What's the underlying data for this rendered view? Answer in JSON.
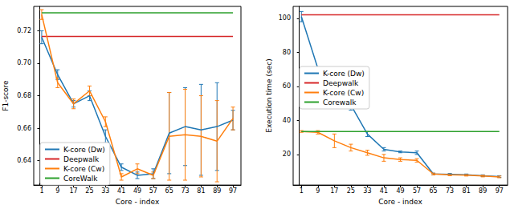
{
  "chart_data": [
    {
      "type": "line",
      "x_label": "Core - index",
      "y_label": "F1-score",
      "x": [
        1,
        9,
        17,
        25,
        33,
        41,
        49,
        57,
        65,
        73,
        81,
        89,
        97
      ],
      "xlim": [
        -3,
        101
      ],
      "xticks": [
        1,
        9,
        17,
        25,
        33,
        41,
        49,
        57,
        65,
        73,
        81,
        89,
        97
      ],
      "ylim": [
        0.625,
        0.735
      ],
      "yticks": [
        0.64,
        0.66,
        0.68,
        {
          "value": 0.7,
          "label": "0.70"
        },
        0.72
      ],
      "grid": false,
      "legend": "lower left",
      "series": [
        {
          "name": "K-core (Dw)",
          "color": "#1f77b4",
          "marker": "none",
          "line_style": "solid",
          "values": [
            0.716,
            0.693,
            0.675,
            0.68,
            0.655,
            0.636,
            0.631,
            0.632,
            0.657,
            0.661,
            0.659,
            0.661,
            0.665
          ],
          "errors": [
            0.004,
            0.003,
            0.002,
            0.003,
            0.004,
            0.002,
            0.002,
            0.003,
            0.025,
            0.024,
            0.028,
            0.027,
            0.006
          ]
        },
        {
          "name": "Deepwalk",
          "color": "#d62728",
          "marker": "none",
          "line_style": "solid",
          "values": [
            0.7165,
            0.7165,
            0.7165,
            0.7165,
            0.7165,
            0.7165,
            0.7165,
            0.7165,
            0.7165,
            0.7165,
            0.7165,
            0.7165,
            0.7165
          ]
        },
        {
          "name": "K-core (Cw)",
          "color": "#ff7f0e",
          "marker": "none",
          "line_style": "solid",
          "values": [
            0.73,
            0.688,
            0.675,
            0.683,
            0.664,
            0.63,
            0.635,
            0.631,
            0.655,
            0.656,
            0.655,
            0.652,
            0.666
          ],
          "errors": [
            0.003,
            0.003,
            0.003,
            0.003,
            0.003,
            0.002,
            0.003,
            0.002,
            0.027,
            0.028,
            0.025,
            0.025,
            0.007
          ]
        },
        {
          "name": "CoreWalk",
          "color": "#2ca02c",
          "marker": "none",
          "line_style": "solid",
          "values": [
            0.731,
            0.731,
            0.731,
            0.731,
            0.731,
            0.731,
            0.731,
            0.731,
            0.731,
            0.731,
            0.731,
            0.731,
            0.731
          ]
        }
      ]
    },
    {
      "type": "line",
      "x_label": "Core - index",
      "y_label": "Execution time (sec)",
      "x": [
        1,
        9,
        17,
        25,
        33,
        41,
        49,
        57,
        65,
        73,
        81,
        89,
        97
      ],
      "xlim": [
        -3,
        101
      ],
      "xticks": [
        1,
        9,
        17,
        25,
        33,
        41,
        49,
        57,
        65,
        73,
        81,
        89,
        97
      ],
      "ylim": [
        2,
        107
      ],
      "yticks": [
        20,
        40,
        60,
        80,
        100
      ],
      "grid": false,
      "legend": "center left",
      "series": [
        {
          "name": "K-core (Dw)",
          "color": "#1f77b4",
          "marker": "none",
          "line_style": "solid",
          "values": [
            101,
            70.5,
            60,
            49,
            32,
            23,
            21.5,
            21,
            8.5,
            8.3,
            8,
            7.5,
            7
          ],
          "errors": [
            3,
            1,
            1,
            3,
            1.5,
            1,
            0.5,
            1,
            0.5,
            0.5,
            0.5,
            0.5,
            0.5
          ]
        },
        {
          "name": "Deepwalk",
          "color": "#d62728",
          "marker": "none",
          "line_style": "solid",
          "values": [
            102,
            102,
            102,
            102,
            102,
            102,
            102,
            102,
            102,
            102,
            102,
            102,
            102
          ]
        },
        {
          "name": "K-core (Cw)",
          "color": "#ff7f0e",
          "marker": "none",
          "line_style": "solid",
          "values": [
            33.5,
            33,
            28,
            24,
            21,
            18,
            17,
            16.5,
            8.5,
            8,
            7.8,
            7.3,
            6.8
          ],
          "errors": [
            0.5,
            1,
            4,
            2,
            1.5,
            2,
            1,
            1,
            0.5,
            0.5,
            0.5,
            0.5,
            0.5
          ]
        },
        {
          "name": "Corewalk",
          "color": "#2ca02c",
          "marker": "none",
          "line_style": "solid",
          "values": [
            33.5,
            33.5,
            33.5,
            33.5,
            33.5,
            33.5,
            33.5,
            33.5,
            33.5,
            33.5,
            33.5,
            33.5,
            33.5
          ]
        }
      ]
    }
  ]
}
